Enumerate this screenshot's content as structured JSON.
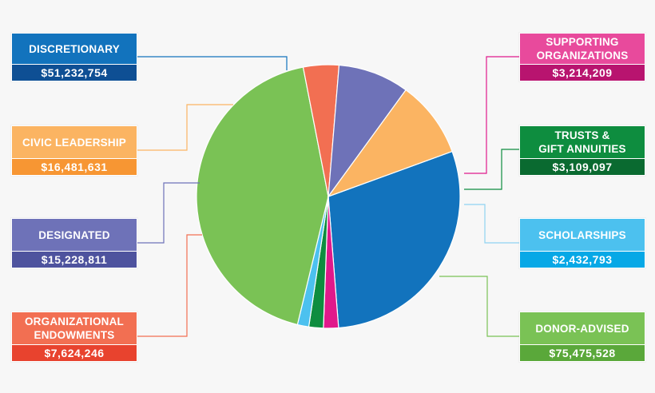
{
  "chart_data": {
    "type": "pie",
    "title": "",
    "slices": [
      {
        "label": "DISCRETIONARY",
        "value": 51232754,
        "display": "$51,232,754",
        "color": "#1273bd",
        "value_color": "#0e4f94"
      },
      {
        "label": "SUPPORTING ORGANIZATIONS",
        "value": 3214209,
        "display": "$3,214,209",
        "color": "#e0198b",
        "value_color": "#b8146f"
      },
      {
        "label": "TRUSTS & GIFT ANNUITIES",
        "value": 3109097,
        "display": "$3,109,097",
        "color": "#0e8d3f",
        "value_color": "#0a6a30"
      },
      {
        "label": "SCHOLARSHIPS",
        "value": 2432793,
        "display": "$2,432,793",
        "color": "#4cc1ef",
        "value_color": "#07a8e6"
      },
      {
        "label": "DONOR-ADVISED",
        "value": 75475528,
        "display": "$75,475,528",
        "color": "#7ac255",
        "value_color": "#5aa83a"
      },
      {
        "label": "ORGANIZATIONAL ENDOWMENTS",
        "value": 7624246,
        "display": "$7,624,246",
        "color": "#f26f52",
        "value_color": "#e8432e"
      },
      {
        "label": "DESIGNATED",
        "value": 15228811,
        "display": "$15,228,811",
        "color": "#6e72b8",
        "value_color": "#4e539e"
      },
      {
        "label": "CIVIC LEADERSHIP",
        "value": 16481631,
        "display": "$16,481,631",
        "color": "#fbb462",
        "value_color": "#f79633"
      }
    ]
  },
  "label_lines": {
    "DISCRETIONARY": [
      "DISCRETIONARY"
    ],
    "SUPPORTING ORGANIZATIONS": [
      "SUPPORTING",
      "ORGANIZATIONS"
    ],
    "TRUSTS & GIFT ANNUITIES": [
      "TRUSTS &",
      "GIFT ANNUITIES"
    ],
    "SCHOLARSHIPS": [
      "SCHOLARSHIPS"
    ],
    "DONOR-ADVISED": [
      "DONOR-ADVISED"
    ],
    "ORGANIZATIONAL ENDOWMENTS": [
      "ORGANIZATIONAL",
      "ENDOWMENTS"
    ],
    "DESIGNATED": [
      "DESIGNATED"
    ],
    "CIVIC LEADERSHIP": [
      "CIVIC LEADERSHIP"
    ]
  }
}
